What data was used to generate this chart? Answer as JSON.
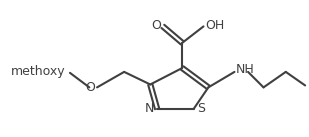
{
  "bg_color": "#ffffff",
  "line_color": "#404040",
  "line_width": 1.5,
  "text_color": "#404040",
  "atoms": {
    "N_label": "N",
    "S_label": "S",
    "O_label": "O",
    "NH_label": "NH",
    "OH_label": "OH",
    "C_carbonyl_O": "O",
    "methoxy": "O",
    "methoxy_CH3": "methoxy"
  },
  "font_size": 9
}
